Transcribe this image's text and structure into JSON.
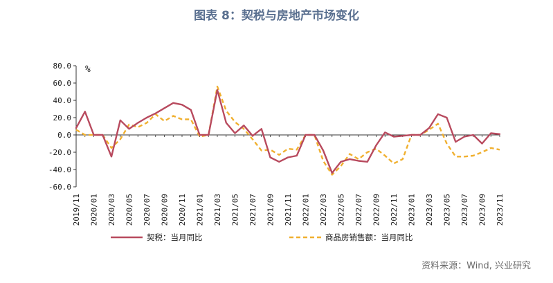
{
  "figure_title": "图表 8：契税与房地产市场变化",
  "source_note": "资料来源：Wind, 兴业研究",
  "chart_data": {
    "type": "line",
    "title": "",
    "unit_label": "%",
    "xlabel": "",
    "ylabel": "",
    "ylim": [
      -60,
      80
    ],
    "yticks": [
      -60,
      -40,
      -20,
      0,
      20,
      40,
      60,
      80
    ],
    "ytick_labels": [
      "-60.0",
      "-40.0",
      "-20.0",
      "0.0",
      "20.0",
      "40.0",
      "60.0",
      "80.0"
    ],
    "grid": false,
    "legend_position": "bottom",
    "x": [
      "2019/11",
      "2019/12",
      "2020/01",
      "2020/02",
      "2020/03",
      "2020/04",
      "2020/05",
      "2020/06",
      "2020/07",
      "2020/08",
      "2020/09",
      "2020/10",
      "2020/11",
      "2020/12",
      "2021/01",
      "2021/02",
      "2021/03",
      "2021/04",
      "2021/05",
      "2021/06",
      "2021/07",
      "2021/08",
      "2021/09",
      "2021/10",
      "2021/11",
      "2021/12",
      "2022/01",
      "2022/02",
      "2022/03",
      "2022/04",
      "2022/05",
      "2022/06",
      "2022/07",
      "2022/08",
      "2022/09",
      "2022/10",
      "2022/11",
      "2022/12",
      "2023/01",
      "2023/02",
      "2023/03",
      "2023/04",
      "2023/05",
      "2023/06",
      "2023/07",
      "2023/08",
      "2023/09",
      "2023/10",
      "2023/11"
    ],
    "x_tick_labels": [
      "2019/11",
      "2020/01",
      "2020/03",
      "2020/05",
      "2020/07",
      "2020/09",
      "2020/11",
      "2021/01",
      "2021/03",
      "2021/05",
      "2021/07",
      "2021/09",
      "2021/11",
      "2022/01",
      "2022/03",
      "2022/05",
      "2022/07",
      "2022/09",
      "2022/11",
      "2023/01",
      "2023/03",
      "2023/05",
      "2023/07",
      "2023/09",
      "2023/11"
    ],
    "series": [
      {
        "name": "契税：当月同比",
        "color": "#b84a5e",
        "style": "solid",
        "values": [
          8,
          27,
          0,
          0,
          -25,
          17,
          7,
          14,
          20,
          25,
          31,
          37,
          35,
          29,
          0,
          0,
          52,
          14,
          2,
          11,
          -1,
          7,
          -26,
          -31,
          -26,
          -24,
          0,
          0,
          -18,
          -44,
          -31,
          -28,
          -30,
          -31,
          -12,
          3,
          -2,
          -1,
          0,
          0,
          8,
          24,
          20,
          -8,
          -2,
          0,
          -10,
          2,
          1
        ]
      },
      {
        "name": "商品房销售额：当月同比",
        "color": "#f0b030",
        "style": "dashed",
        "values": [
          6,
          0,
          0,
          0,
          -15,
          -5,
          12,
          9,
          14,
          24,
          16,
          22,
          18,
          18,
          -2,
          0,
          56,
          28,
          15,
          7,
          -5,
          -18,
          -17,
          -23,
          -16,
          -17,
          0,
          0,
          -30,
          -46,
          -36,
          -22,
          -28,
          -20,
          -16,
          -24,
          -33,
          -28,
          0,
          0,
          6,
          13,
          -10,
          -25,
          -25,
          -24,
          -20,
          -15,
          -17
        ]
      }
    ]
  }
}
